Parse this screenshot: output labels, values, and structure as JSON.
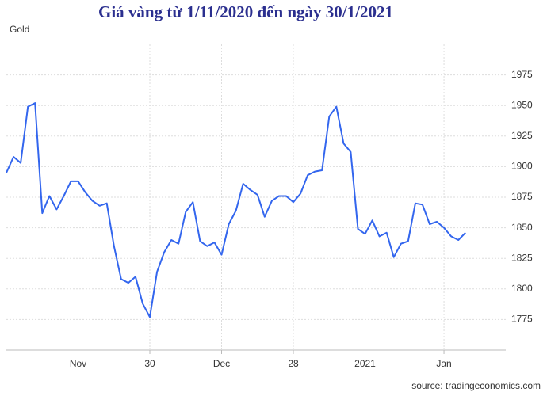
{
  "chart_data": {
    "type": "line",
    "title": "Giá vàng từ 1/11/2020 đến ngày 30/1/2021",
    "source": "source: tradingeconomics.com",
    "categories": [
      null,
      null,
      null,
      null,
      null,
      null,
      null,
      null,
      null,
      null,
      "Nov",
      null,
      null,
      null,
      null,
      null,
      null,
      null,
      null,
      null,
      "30",
      null,
      null,
      null,
      null,
      null,
      null,
      null,
      null,
      null,
      "Dec",
      null,
      null,
      null,
      null,
      null,
      null,
      null,
      null,
      null,
      "28",
      null,
      null,
      null,
      null,
      null,
      null,
      null,
      null,
      null,
      "2021",
      null,
      null,
      null,
      null,
      null,
      null,
      null,
      null,
      null,
      null,
      "Jan",
      null,
      null,
      null
    ],
    "series": [
      {
        "name": "Gold",
        "color": "#3366ee",
        "values": [
          1895,
          1908,
          1903,
          1949,
          1952,
          1862,
          1876,
          1865,
          1876,
          1888,
          1888,
          1879,
          1872,
          1868,
          1870,
          1835,
          1808,
          1805,
          1810,
          1788,
          1777,
          1814,
          1830,
          1840,
          1837,
          1863,
          1871,
          1839,
          1835,
          1838,
          1828,
          1853,
          1864,
          1886,
          1881,
          1877,
          1859,
          1872,
          1876,
          1876,
          1871,
          1878,
          1893,
          1896,
          1897,
          1941,
          1949,
          1919,
          1912,
          1849,
          1845,
          1856,
          1843,
          1846,
          1826,
          1837,
          1839,
          1870,
          1869,
          1853,
          1855,
          1850,
          1843,
          1840,
          1846
        ]
      }
    ],
    "ylim": [
      1750,
      2000
    ],
    "yticks": [
      1775,
      1800,
      1825,
      1850,
      1875,
      1900,
      1925,
      1950,
      1975
    ],
    "grid": true
  }
}
